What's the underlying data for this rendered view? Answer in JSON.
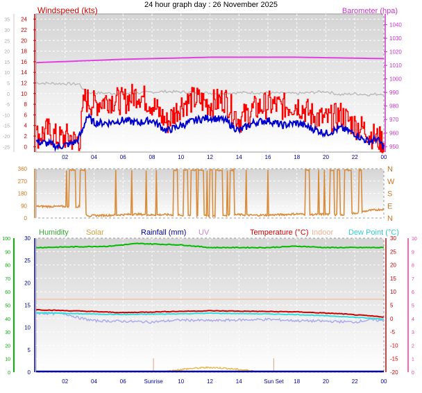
{
  "page": {
    "title": "24 hour graph day : 26 November 2025"
  },
  "colors": {
    "windspeed": "#ff0000",
    "wind_avg": "#0000cc",
    "barometer": "#e040e0",
    "temp_outdoor_old": "#bbbbbb",
    "direction": "#d98b3a",
    "humidity": "#00bb00",
    "solar": "#e8b84a",
    "rainfall": "#000099",
    "uv": "#d080d0",
    "temperature": "#cc0000",
    "indoor": "#f0b090",
    "dewpoint": "#33dddd",
    "chill": "#aaaaee"
  },
  "chart_data": [
    {
      "id": "wind",
      "type": "line",
      "left_label": "Windspeed (kts)",
      "right_label": "Barometer (hpa)",
      "x_ticks": [
        "02",
        "04",
        "06",
        "08",
        "10",
        "12",
        "14",
        "16",
        "18",
        "20",
        "22",
        "00"
      ],
      "left_ticks": [
        0,
        2,
        4,
        6,
        8,
        10,
        12,
        14,
        16,
        18,
        20,
        22,
        24
      ],
      "outer_left_ticks": [
        -25,
        -20,
        -15,
        -10,
        -5,
        0,
        5,
        10,
        15,
        20,
        25,
        30,
        35
      ],
      "right_ticks": [
        950,
        960,
        970,
        980,
        990,
        1000,
        1010,
        1020,
        1030,
        1040
      ],
      "ylim_left": [
        -1,
        25
      ],
      "ylim_right": [
        946,
        1048
      ],
      "barometer": {
        "hours": [
          0,
          6,
          12,
          18,
          24
        ],
        "values": [
          1012,
          1014.5,
          1016,
          1016,
          1015
        ]
      },
      "gray_series": {
        "hours": [
          0,
          3,
          3.4,
          6,
          9,
          12,
          15,
          18,
          20,
          21,
          22,
          23,
          24
        ],
        "values": [
          12,
          11.8,
          10.2,
          10.0,
          10.4,
          10.1,
          10.2,
          10.0,
          10.4,
          9.8,
          10.0,
          9.8,
          10.0
        ]
      },
      "gust": {
        "hours": [
          0,
          0.8,
          1.5,
          2.3,
          2.6,
          3.0,
          3.3,
          4,
          5,
          6,
          7,
          8,
          9,
          10,
          11,
          12,
          13,
          14,
          15,
          16,
          17,
          18,
          19,
          20,
          21,
          22,
          22.5,
          23,
          23.5,
          24
        ],
        "values": [
          2,
          3,
          1.5,
          2,
          1,
          1.5,
          9,
          8,
          9,
          8.5,
          10,
          8,
          4.5,
          8,
          9,
          8,
          9,
          5,
          7,
          8,
          7.5,
          8,
          6,
          5,
          6,
          4,
          3.5,
          2.5,
          1.5,
          1
        ]
      },
      "average": {
        "hours": [
          0,
          1,
          1.5,
          2.3,
          2.8,
          3.2,
          3.5,
          4,
          5,
          6,
          7,
          8,
          9,
          10,
          11,
          12,
          13,
          14,
          15,
          16,
          17,
          18,
          19,
          20,
          21,
          22,
          22.5,
          23,
          23.5,
          24
        ],
        "values": [
          1,
          0.5,
          0,
          0.5,
          1,
          3,
          5.8,
          4.5,
          4.5,
          5,
          4.5,
          5,
          3,
          4,
          5,
          5.5,
          5,
          3,
          4.5,
          5,
          4,
          4.5,
          3.5,
          2.5,
          3.5,
          2.5,
          1.5,
          1,
          1.5,
          0
        ]
      }
    },
    {
      "id": "direction",
      "type": "line",
      "left_ticks": [
        0,
        90,
        180,
        270,
        360
      ],
      "right_labels": [
        "N",
        "E",
        "S",
        "W",
        "N"
      ],
      "ylim": [
        0,
        360
      ],
      "bearing": {
        "hours": [
          0,
          3,
          3.4,
          3.7,
          4,
          5,
          6,
          7,
          8,
          9,
          10,
          11,
          12,
          13,
          14,
          15,
          16,
          17,
          18,
          19,
          20,
          21,
          22,
          23,
          24
        ],
        "values": [
          85,
          84,
          30,
          15,
          18,
          20,
          25,
          28,
          22,
          25,
          20,
          18,
          15,
          20,
          25,
          20,
          22,
          25,
          30,
          25,
          28,
          20,
          35,
          55,
          65
        ]
      }
    },
    {
      "id": "temperature",
      "type": "line",
      "legend": [
        "Humidity",
        "Solar",
        "Rainfall (mm)",
        "UV",
        "Temperature (°C)",
        "Indoor",
        "Dew Point (°C)"
      ],
      "x_ticks": [
        "02",
        "04",
        "06",
        "Sunrise",
        "10",
        "12",
        "14",
        "Sun Set",
        "18",
        "20",
        "22",
        "00"
      ],
      "humidity_ticks": [
        0,
        10,
        20,
        30,
        40,
        50,
        60,
        70,
        80,
        90,
        100
      ],
      "rain_ticks": [
        0,
        5,
        10,
        15,
        20,
        25,
        30
      ],
      "temp_ticks": [
        -20,
        -15,
        -10,
        -5,
        0,
        5,
        10,
        15,
        20,
        25,
        30
      ],
      "uv_ticks": [
        0,
        1,
        2,
        3,
        4,
        5,
        6,
        7,
        8,
        9,
        10
      ],
      "ylim_temp": [
        -20,
        30
      ],
      "temperature": {
        "hours": [
          0,
          3,
          6,
          9,
          12,
          15,
          18,
          21,
          24
        ],
        "values": [
          3.3,
          2.8,
          2.2,
          2.6,
          2.9,
          2.7,
          2.5,
          1.8,
          0.6
        ]
      },
      "dewpoint": {
        "hours": [
          0,
          3,
          6,
          9,
          12,
          15,
          18,
          21,
          24
        ],
        "values": [
          2.2,
          1.8,
          1.5,
          1.7,
          2.0,
          1.8,
          1.5,
          0.8,
          -0.2
        ]
      },
      "chill": {
        "hours": [
          0,
          2,
          3,
          4,
          6,
          8,
          10,
          12,
          14,
          16,
          18,
          20,
          22,
          23,
          24
        ],
        "values": [
          2.0,
          1.8,
          0.2,
          -0.8,
          -1.0,
          -1.3,
          -0.5,
          -0.8,
          -0.5,
          -0.3,
          -0.8,
          -1.0,
          -1.3,
          -0.5,
          -0.8
        ]
      },
      "indoor": {
        "hours": [
          0,
          24
        ],
        "values": [
          7.2,
          7.2
        ]
      },
      "humidity": {
        "hours": [
          0,
          5,
          7,
          10,
          12,
          16,
          18,
          20,
          24
        ],
        "values": [
          93,
          94,
          96,
          95,
          93,
          93,
          94,
          93,
          93
        ]
      },
      "solar": {
        "hours": [
          9,
          10,
          11,
          12,
          13,
          14,
          15
        ],
        "values": [
          0.5,
          2,
          3,
          3.5,
          3,
          2,
          1
        ]
      },
      "sunrise_hour": 8.1,
      "sunset_hour": 16.4
    }
  ]
}
